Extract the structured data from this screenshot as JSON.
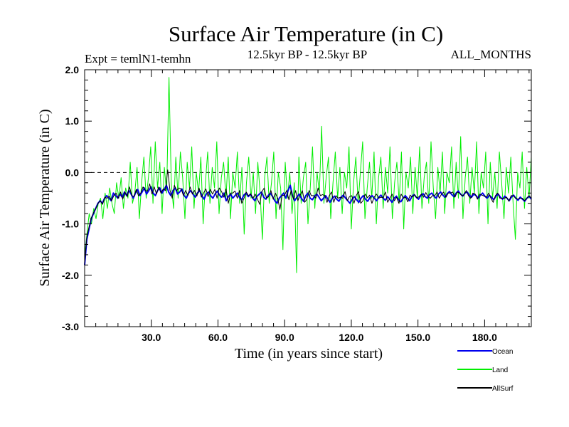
{
  "chart_data": {
    "type": "line",
    "title": "Surface Air Temperature (in C)",
    "subtitle_left": "Expt = temlN1-temhn",
    "subtitle_center": "12.5kyr BP - 12.5kyr BP",
    "subtitle_right": "ALL_MONTHS",
    "xlabel": "Time (in years since start)",
    "ylabel": "Surface Air Temperature (in C)",
    "xlim": [
      0,
      201
    ],
    "ylim": [
      -3.0,
      2.0
    ],
    "x_ticks": [
      30,
      60,
      90,
      120,
      150,
      180
    ],
    "x_tick_labels": [
      "30.0",
      "60.0",
      "90.0",
      "120.0",
      "150.0",
      "180.0"
    ],
    "y_ticks": [
      2.0,
      1.0,
      0.0,
      -1.0,
      -2.0,
      -3.0
    ],
    "y_tick_labels": [
      "2.0",
      "1.0",
      "0.0",
      "-1.0",
      "-2.0",
      "-3.0"
    ],
    "reference_line": {
      "y": 0.0,
      "style": "dashed"
    },
    "series": [
      {
        "name": "Land",
        "color": "#00ee00",
        "x_start": 0,
        "x_end": 201,
        "values": [
          -1.6,
          -1.2,
          -0.8,
          -1.0,
          -0.7,
          -0.9,
          -0.6,
          -0.5,
          -0.9,
          -0.4,
          -0.7,
          -0.3,
          -0.6,
          -0.8,
          -0.2,
          -0.5,
          -0.1,
          -0.7,
          -0.3,
          -0.5,
          0.2,
          -0.6,
          -0.4,
          0.1,
          -0.9,
          -0.2,
          0.3,
          -0.5,
          -0.1,
          0.5,
          -0.6,
          0.6,
          -0.3,
          0.2,
          -0.8,
          0.1,
          -0.4,
          1.85,
          -0.2,
          -0.7,
          0.3,
          -0.5,
          0.4,
          -0.1,
          -0.9,
          0.2,
          -0.3,
          0.5,
          -0.7,
          0.0,
          -0.4,
          0.3,
          -1.0,
          -0.2,
          0.4,
          -0.6,
          0.1,
          -0.3,
          0.6,
          -0.8,
          -0.1,
          0.2,
          -0.5,
          0.3,
          -0.9,
          0.0,
          -0.3,
          0.4,
          -0.6,
          0.1,
          -1.2,
          -0.2,
          0.3,
          -0.5,
          0.0,
          -0.8,
          0.2,
          -0.4,
          -1.3,
          -0.1,
          0.3,
          -0.6,
          -0.2,
          0.4,
          -0.9,
          0.0,
          -0.3,
          -1.5,
          0.2,
          -0.5,
          0.0,
          -0.8,
          -0.2,
          -1.95,
          0.3,
          -0.6,
          -0.1,
          0.2,
          -1.0,
          -0.3,
          0.5,
          -0.7,
          0.0,
          -0.4,
          0.9,
          -0.6,
          -0.1,
          0.3,
          -0.9,
          -0.2,
          0.4,
          -0.5,
          0.1,
          -0.8,
          0.0,
          -0.3,
          0.5,
          -1.1,
          -0.2,
          0.3,
          -0.6,
          0.0,
          0.6,
          -0.9,
          -0.3,
          0.2,
          -0.5,
          0.4,
          -1.0,
          -0.1,
          0.3,
          -0.7,
          0.1,
          -0.4,
          0.5,
          -0.9,
          -0.2,
          0.2,
          -0.6,
          0.4,
          -1.1,
          0.0,
          -0.3,
          0.3,
          -0.8,
          0.1,
          -0.5,
          0.5,
          -0.7,
          -0.1,
          0.2,
          -0.6,
          0.6,
          -0.3,
          -0.9,
          0.1,
          -0.4,
          0.4,
          -0.8,
          0.0,
          -0.2,
          0.5,
          -0.7,
          0.2,
          -0.5,
          0.7,
          -0.9,
          -0.1,
          0.3,
          -0.6,
          0.1,
          -0.4,
          0.6,
          -0.8,
          0.0,
          -0.3,
          0.4,
          -1.0,
          0.2,
          -0.5,
          0.0,
          -0.7,
          0.4,
          -0.2,
          -0.9,
          0.1,
          -0.4,
          0.3,
          -0.6,
          -1.3,
          0.0,
          -0.3,
          0.4,
          -0.7,
          0.1,
          -0.5,
          0.3
        ]
      },
      {
        "name": "Ocean",
        "color": "#0000ee",
        "x_start": 0,
        "x_end": 201,
        "values": [
          -1.8,
          -1.3,
          -1.1,
          -0.9,
          -0.8,
          -0.7,
          -0.6,
          -0.55,
          -0.6,
          -0.5,
          -0.45,
          -0.5,
          -0.55,
          -0.4,
          -0.45,
          -0.5,
          -0.42,
          -0.48,
          -0.38,
          -0.45,
          -0.35,
          -0.42,
          -0.5,
          -0.4,
          -0.33,
          -0.45,
          -0.38,
          -0.3,
          -0.42,
          -0.35,
          -0.28,
          -0.4,
          -0.45,
          -0.35,
          -0.3,
          -0.4,
          -0.33,
          -0.25,
          -0.38,
          -0.45,
          -0.35,
          -0.3,
          -0.42,
          -0.38,
          -0.32,
          -0.45,
          -0.5,
          -0.4,
          -0.35,
          -0.42,
          -0.48,
          -0.4,
          -0.35,
          -0.45,
          -0.52,
          -0.42,
          -0.38,
          -0.45,
          -0.5,
          -0.42,
          -0.36,
          -0.44,
          -0.48,
          -0.4,
          -0.55,
          -0.47,
          -0.42,
          -0.5,
          -0.45,
          -0.4,
          -0.48,
          -0.53,
          -0.44,
          -0.4,
          -0.47,
          -0.42,
          -0.5,
          -0.55,
          -0.46,
          -0.42,
          -0.38,
          -0.48,
          -0.52,
          -0.45,
          -0.4,
          -0.47,
          -0.55,
          -0.6,
          -0.5,
          -0.45,
          -0.4,
          -0.5,
          -0.35,
          -0.25,
          -0.45,
          -0.55,
          -0.48,
          -0.42,
          -0.5,
          -0.56,
          -0.45,
          -0.4,
          -0.5,
          -0.53,
          -0.46,
          -0.42,
          -0.48,
          -0.55,
          -0.5,
          -0.45,
          -0.52,
          -0.58,
          -0.5,
          -0.46,
          -0.52,
          -0.56,
          -0.48,
          -0.44,
          -0.5,
          -0.55,
          -0.6,
          -0.52,
          -0.47,
          -0.53,
          -0.58,
          -0.5,
          -0.45,
          -0.52,
          -0.56,
          -0.49,
          -0.45,
          -0.5,
          -0.55,
          -0.48,
          -0.44,
          -0.5,
          -0.54,
          -0.47,
          -0.52,
          -0.58,
          -0.5,
          -0.46,
          -0.53,
          -0.57,
          -0.5,
          -0.45,
          -0.5,
          -0.55,
          -0.47,
          -0.43,
          -0.48,
          -0.52,
          -0.45,
          -0.41,
          -0.47,
          -0.5,
          -0.43,
          -0.4,
          -0.46,
          -0.5,
          -0.42,
          -0.38,
          -0.44,
          -0.48,
          -0.41,
          -0.37,
          -0.43,
          -0.47,
          -0.4,
          -0.36,
          -0.42,
          -0.46,
          -0.4,
          -0.38,
          -0.44,
          -0.48,
          -0.42,
          -0.45,
          -0.5,
          -0.44,
          -0.4,
          -0.46,
          -0.5,
          -0.44,
          -0.48,
          -0.53,
          -0.46,
          -0.42,
          -0.48,
          -0.52,
          -0.46,
          -0.5,
          -0.55,
          -0.48,
          -0.44,
          -0.5,
          -0.54,
          -0.48,
          -0.52,
          -0.56,
          -0.5,
          -0.46,
          -0.52
        ]
      },
      {
        "name": "AllSurf",
        "color": "#000000",
        "x_start": 0,
        "x_end": 201,
        "values": [
          -1.75,
          -1.25,
          -1.05,
          -0.88,
          -0.78,
          -0.7,
          -0.6,
          -0.55,
          -0.62,
          -0.48,
          -0.5,
          -0.46,
          -0.55,
          -0.45,
          -0.4,
          -0.5,
          -0.38,
          -0.52,
          -0.38,
          -0.47,
          -0.28,
          -0.45,
          -0.47,
          -0.33,
          -0.45,
          -0.4,
          -0.28,
          -0.35,
          -0.36,
          -0.22,
          -0.42,
          -0.28,
          -0.42,
          -0.28,
          -0.4,
          -0.32,
          -0.35,
          0.05,
          -0.34,
          -0.5,
          -0.25,
          -0.35,
          -0.3,
          -0.32,
          -0.45,
          -0.35,
          -0.45,
          -0.28,
          -0.42,
          -0.35,
          -0.46,
          -0.3,
          -0.48,
          -0.4,
          -0.32,
          -0.47,
          -0.33,
          -0.42,
          -0.33,
          -0.5,
          -0.3,
          -0.37,
          -0.48,
          -0.32,
          -0.6,
          -0.4,
          -0.4,
          -0.36,
          -0.5,
          -0.35,
          -0.6,
          -0.5,
          -0.38,
          -0.45,
          -0.42,
          -0.5,
          -0.42,
          -0.52,
          -0.62,
          -0.37,
          -0.3,
          -0.5,
          -0.47,
          -0.35,
          -0.52,
          -0.4,
          -0.5,
          -0.72,
          -0.44,
          -0.45,
          -0.35,
          -0.53,
          -0.35,
          -0.52,
          -0.35,
          -0.55,
          -0.44,
          -0.35,
          -0.58,
          -0.52,
          -0.35,
          -0.45,
          -0.45,
          -0.5,
          -0.3,
          -0.45,
          -0.43,
          -0.45,
          -0.58,
          -0.45,
          -0.38,
          -0.58,
          -0.45,
          -0.5,
          -0.48,
          -0.5,
          -0.37,
          -0.55,
          -0.47,
          -0.45,
          -0.6,
          -0.45,
          -0.37,
          -0.6,
          -0.55,
          -0.42,
          -0.49,
          -0.44,
          -0.6,
          -0.48,
          -0.42,
          -0.5,
          -0.48,
          -0.49,
          -0.38,
          -0.58,
          -0.5,
          -0.42,
          -0.55,
          -0.48,
          -0.6,
          -0.42,
          -0.5,
          -0.48,
          -0.57,
          -0.44,
          -0.48,
          -0.43,
          -0.5,
          -0.47,
          -0.42,
          -0.48,
          -0.39,
          -0.47,
          -0.5,
          -0.45,
          -0.45,
          -0.38,
          -0.5,
          -0.42,
          -0.38,
          -0.48,
          -0.4,
          -0.4,
          -0.38,
          -0.48,
          -0.38,
          -0.4,
          -0.45,
          -0.44,
          -0.35,
          -0.45,
          -0.5,
          -0.4,
          -0.42,
          -0.52,
          -0.42,
          -0.44,
          -0.46,
          -0.48,
          -0.4,
          -0.5,
          -0.58,
          -0.45,
          -0.4,
          -0.5,
          -0.5,
          -0.5,
          -0.48,
          -0.56,
          -0.45,
          -0.45,
          -0.5,
          -0.52,
          -0.5,
          -0.5,
          -0.55,
          -0.5,
          -0.45,
          -0.5
        ]
      }
    ],
    "legend": [
      {
        "label": "Ocean",
        "color": "#0000ee"
      },
      {
        "label": "Land",
        "color": "#00ee00"
      },
      {
        "label": "AllSurf",
        "color": "#000000"
      }
    ],
    "legend_placement": "bottom-right"
  }
}
